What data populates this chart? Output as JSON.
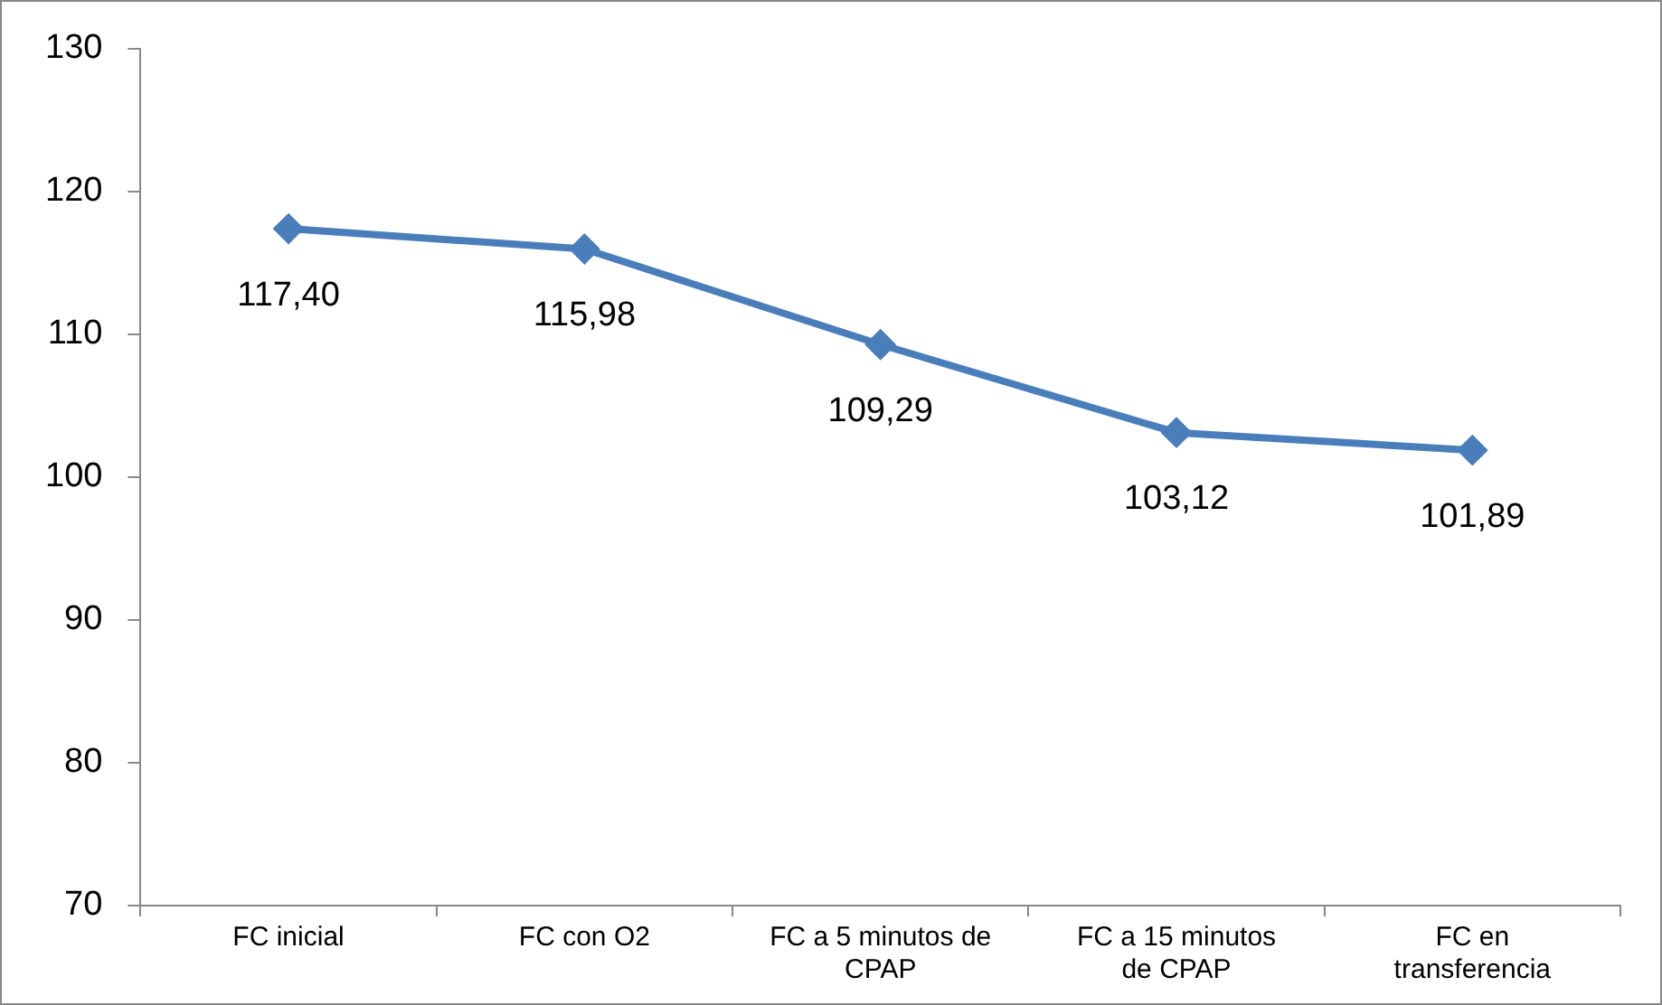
{
  "chart_data": {
    "type": "line",
    "categories": [
      "FC inicial",
      "FC con O2",
      "FC a 5 minutos de CPAP",
      "FC a 15 minutos de CPAP",
      "FC en transferencia"
    ],
    "series": [
      {
        "color": "#4a7ebb",
        "values": [
          117.4,
          115.98,
          109.29,
          103.12,
          101.89
        ],
        "value_labels": [
          "117,40",
          "115,98",
          "109,29",
          "103,12",
          "101,89"
        ]
      }
    ],
    "ylim": [
      70,
      130
    ],
    "yticks": [
      70,
      80,
      90,
      100,
      110,
      120,
      130
    ],
    "grid": false,
    "legend": false,
    "marker": "diamond",
    "line_style": "solid"
  }
}
